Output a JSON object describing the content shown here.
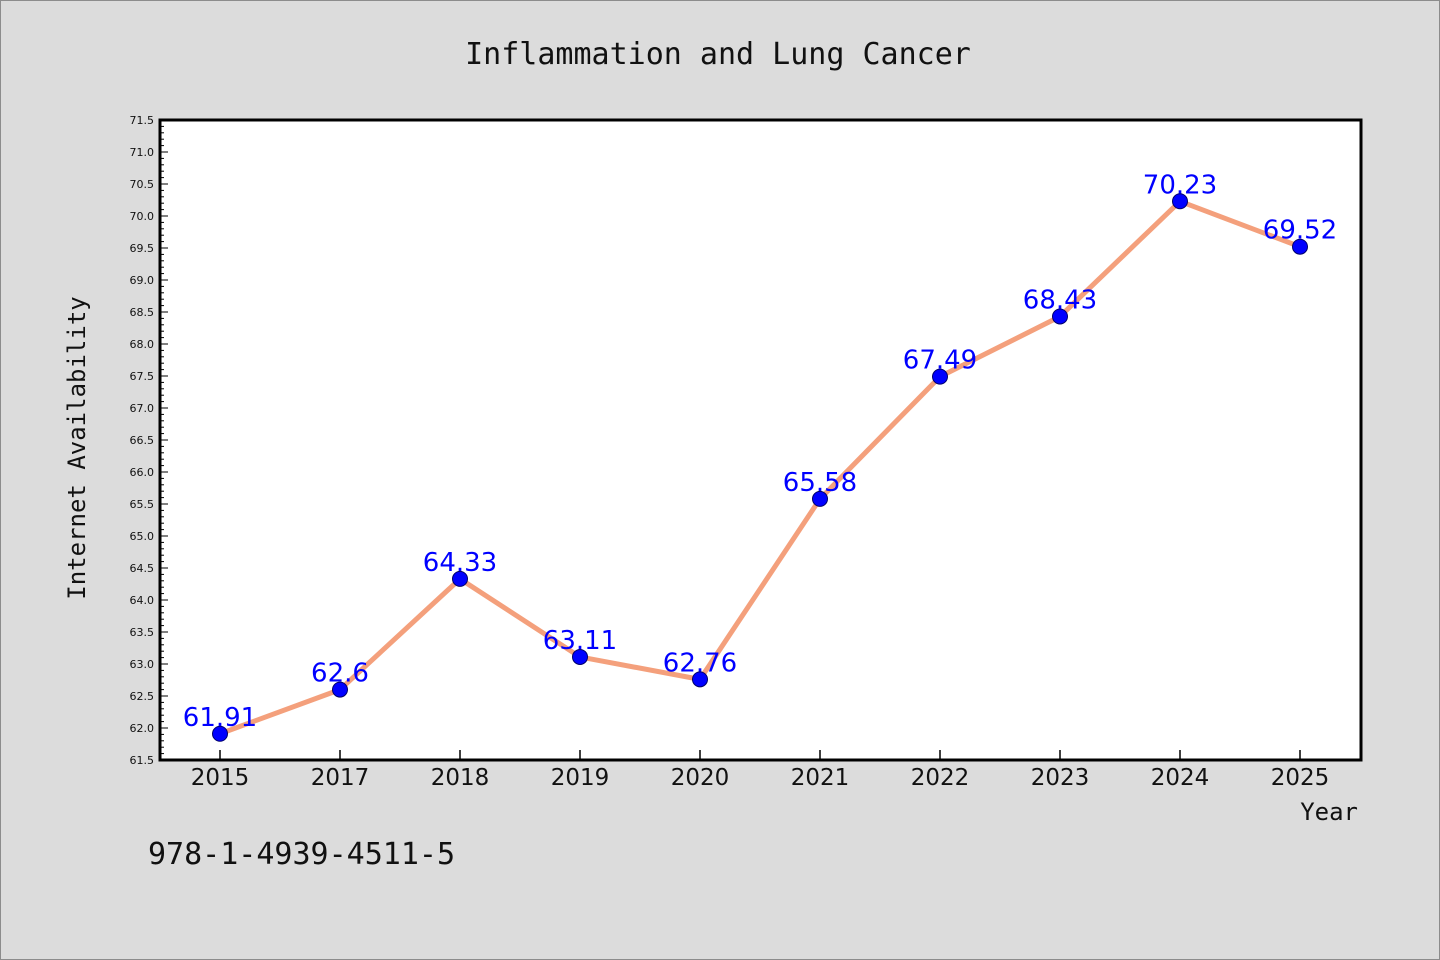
{
  "chart_data": {
    "type": "line",
    "title": "Inflammation and Lung Cancer",
    "xlabel": "Year",
    "ylabel": "Internet Availability",
    "categories": [
      "2015",
      "2017",
      "2018",
      "2019",
      "2020",
      "2021",
      "2022",
      "2023",
      "2024",
      "2025"
    ],
    "series": [
      {
        "values": [
          61.91,
          62.6,
          64.33,
          63.11,
          62.76,
          65.58,
          67.49,
          68.43,
          70.23,
          69.52
        ],
        "data_labels": [
          "61.91",
          "62.6",
          "64.33",
          "63.11",
          "62.76",
          "65.58",
          "67.49",
          "68.43",
          "70.23",
          "69.52"
        ]
      }
    ],
    "ylim": [
      61.5,
      71.5
    ],
    "yticks": [
      "61.5",
      "62.0",
      "62.5",
      "63.0",
      "63.5",
      "64.0",
      "64.5",
      "65.0",
      "65.5",
      "66.0",
      "66.5",
      "67.0",
      "67.5",
      "68.0",
      "68.5",
      "69.0",
      "69.5",
      "70.0",
      "70.5",
      "71.0",
      "71.5"
    ],
    "grid": false,
    "line_color": "#f4a07c",
    "marker_color": "#0000ff",
    "label_color": "#0000ff",
    "background_color": "#dcdcdc",
    "plot_background": "#ffffff"
  },
  "footer": {
    "isbn": "978-1-4939-4511-5"
  }
}
